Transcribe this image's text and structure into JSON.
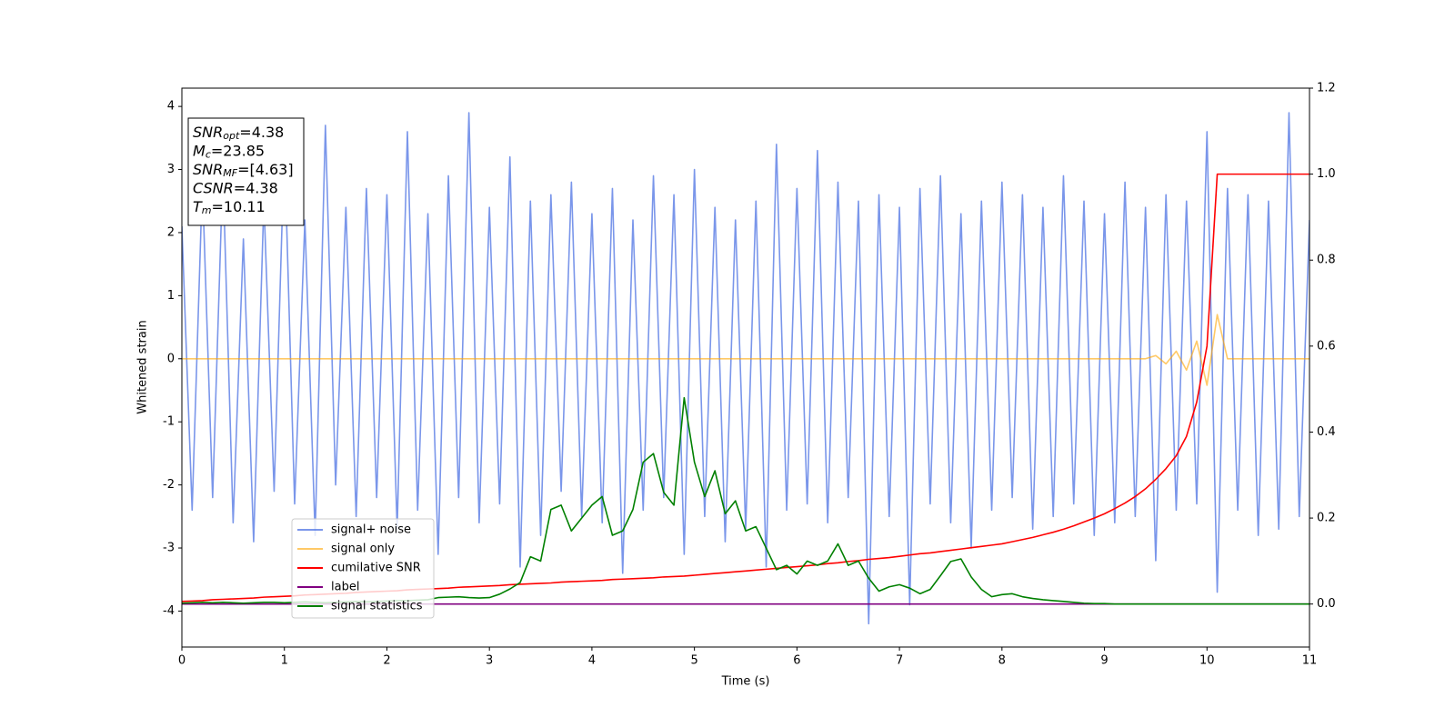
{
  "chart_data": {
    "type": "line",
    "xlabel": "Time (s)",
    "ylabel": "Whitened strain",
    "xlim": [
      0,
      11
    ],
    "xticks": [
      0,
      1,
      2,
      3,
      4,
      5,
      6,
      7,
      8,
      9,
      10,
      11
    ],
    "ylim": [
      -4.57,
      4.29
    ],
    "yticks": [
      -4,
      -3,
      -2,
      -1,
      0,
      1,
      2,
      3,
      4
    ],
    "y2lim": [
      -0.1,
      1.2
    ],
    "y2ticks": [
      {
        "value": 0,
        "label": "0.0"
      },
      0.2,
      0.4,
      0.6,
      0.8,
      {
        "value": 1,
        "label": "1.0"
      },
      1.2
    ],
    "legend": "lower left",
    "annotation": [
      {
        "base": "SNR",
        "sub": "opt",
        "text": "=4.38"
      },
      {
        "base": "M",
        "sub": "c",
        "text": "=23.85"
      },
      {
        "base": "SNR",
        "sub": "MF",
        "text": "=[4.63]"
      },
      {
        "base": "CSNR",
        "sub": "",
        "text": "=4.38"
      },
      {
        "base": "T",
        "sub": "m",
        "text": "=10.11"
      }
    ],
    "x": [
      0,
      0.1,
      0.2,
      0.3,
      0.4,
      0.5,
      0.6,
      0.7,
      0.8,
      0.9,
      1,
      1.1,
      1.2,
      1.3,
      1.4,
      1.5,
      1.6,
      1.7,
      1.8,
      1.9,
      2,
      2.1,
      2.2,
      2.3,
      2.4,
      2.5,
      2.6,
      2.7,
      2.8,
      2.9,
      3,
      3.1,
      3.2,
      3.3,
      3.4,
      3.5,
      3.6,
      3.7,
      3.8,
      3.9,
      4,
      4.1,
      4.2,
      4.3,
      4.4,
      4.5,
      4.6,
      4.7,
      4.8,
      4.9,
      5,
      5.1,
      5.2,
      5.3,
      5.4,
      5.5,
      5.6,
      5.7,
      5.8,
      5.9,
      6,
      6.1,
      6.2,
      6.3,
      6.4,
      6.5,
      6.6,
      6.7,
      6.8,
      6.9,
      7,
      7.1,
      7.2,
      7.3,
      7.4,
      7.5,
      7.6,
      7.7,
      7.8,
      7.9,
      8,
      8.1,
      8.2,
      8.3,
      8.4,
      8.5,
      8.6,
      8.7,
      8.8,
      8.9,
      9,
      9.1,
      9.2,
      9.3,
      9.4,
      9.5,
      9.6,
      9.7,
      9.8,
      9.9,
      10,
      10.1,
      10.2,
      10.3,
      10.4,
      10.5,
      10.6,
      10.7,
      10.8,
      10.9,
      11
    ],
    "series": [
      {
        "name": "signal+ noise",
        "color": "#4169e1",
        "opacity": 0.7,
        "axis": "y",
        "values": [
          2.1,
          -2.4,
          2.8,
          -2.2,
          3.0,
          -2.6,
          1.9,
          -2.9,
          2.5,
          -2.1,
          3.4,
          -2.3,
          2.2,
          -2.8,
          3.7,
          -2.0,
          2.4,
          -2.5,
          2.7,
          -2.2,
          2.6,
          -2.7,
          3.6,
          -2.4,
          2.3,
          -3.1,
          2.9,
          -2.2,
          3.9,
          -2.6,
          2.4,
          -2.3,
          3.2,
          -3.3,
          2.5,
          -2.8,
          2.6,
          -2.1,
          2.8,
          -2.5,
          2.3,
          -2.6,
          2.7,
          -3.4,
          2.2,
          -2.4,
          2.9,
          -2.2,
          2.6,
          -3.1,
          3.0,
          -2.5,
          2.4,
          -2.9,
          2.2,
          -2.7,
          2.5,
          -3.3,
          3.4,
          -2.4,
          2.7,
          -2.3,
          3.3,
          -2.6,
          2.8,
          -2.2,
          2.5,
          -4.2,
          2.6,
          -2.5,
          2.4,
          -3.9,
          2.7,
          -2.3,
          2.9,
          -2.6,
          2.3,
          -3.0,
          2.5,
          -2.4,
          2.8,
          -2.2,
          2.6,
          -2.7,
          2.4,
          -2.5,
          2.9,
          -2.3,
          2.5,
          -2.8,
          2.3,
          -2.6,
          2.8,
          -2.5,
          2.4,
          -3.2,
          2.6,
          -2.4,
          2.5,
          -2.3,
          3.6,
          -3.7,
          2.7,
          -2.4,
          2.6,
          -2.8,
          2.5,
          -2.7,
          3.9,
          -2.5,
          2.2
        ]
      },
      {
        "name": "signal only",
        "color": "#ffa500",
        "opacity": 0.6,
        "axis": "y",
        "values": [
          0,
          0,
          0,
          0,
          0,
          0,
          0,
          0,
          0,
          0,
          0,
          0,
          0,
          0,
          0,
          0,
          0,
          0,
          0,
          0,
          0,
          0,
          0,
          0,
          0,
          0,
          0,
          0,
          0,
          0,
          0,
          0,
          0,
          0,
          0,
          0,
          0,
          0,
          0,
          0,
          0,
          0,
          0,
          0,
          0,
          0,
          0,
          0,
          0,
          0,
          0,
          0,
          0,
          0,
          0,
          0,
          0,
          0,
          0,
          0,
          0,
          0,
          0,
          0,
          0,
          0,
          0,
          0,
          0,
          0,
          0,
          0,
          0,
          0,
          0,
          0,
          0,
          0,
          0,
          0,
          0,
          0,
          0,
          0,
          0,
          0,
          0,
          0,
          0,
          0,
          0,
          0,
          0,
          0,
          0,
          0.05,
          -0.08,
          0.12,
          -0.18,
          0.28,
          -0.42,
          0.7,
          0,
          0,
          0,
          0,
          0,
          0,
          0,
          0,
          0
        ]
      },
      {
        "name": "cumilative SNR",
        "color": "#ff0000",
        "opacity": 1,
        "axis": "y2",
        "values": [
          0.006,
          0.007,
          0.008,
          0.01,
          0.011,
          0.012,
          0.013,
          0.014,
          0.016,
          0.017,
          0.018,
          0.019,
          0.021,
          0.022,
          0.023,
          0.024,
          0.025,
          0.027,
          0.028,
          0.029,
          0.03,
          0.031,
          0.033,
          0.034,
          0.035,
          0.036,
          0.037,
          0.039,
          0.04,
          0.041,
          0.042,
          0.043,
          0.045,
          0.046,
          0.047,
          0.048,
          0.049,
          0.051,
          0.052,
          0.053,
          0.054,
          0.055,
          0.057,
          0.058,
          0.059,
          0.06,
          0.061,
          0.063,
          0.064,
          0.065,
          0.067,
          0.069,
          0.071,
          0.073,
          0.075,
          0.077,
          0.079,
          0.081,
          0.083,
          0.085,
          0.087,
          0.089,
          0.091,
          0.094,
          0.096,
          0.099,
          0.101,
          0.104,
          0.106,
          0.108,
          0.111,
          0.114,
          0.117,
          0.119,
          0.122,
          0.125,
          0.128,
          0.131,
          0.134,
          0.137,
          0.14,
          0.145,
          0.15,
          0.155,
          0.161,
          0.167,
          0.174,
          0.182,
          0.191,
          0.2,
          0.21,
          0.222,
          0.235,
          0.25,
          0.268,
          0.29,
          0.315,
          0.345,
          0.39,
          0.47,
          0.6,
          1,
          1,
          1,
          1,
          1,
          1,
          1,
          1,
          1,
          1
        ]
      },
      {
        "name": "label",
        "color": "#800080",
        "opacity": 1,
        "axis": "y2",
        "values": [
          0,
          0,
          0,
          0,
          0,
          0,
          0,
          0,
          0,
          0,
          0,
          0,
          0,
          0,
          0,
          0,
          0,
          0,
          0,
          0,
          0,
          0,
          0,
          0,
          0,
          0,
          0,
          0,
          0,
          0,
          0,
          0,
          0,
          0,
          0,
          0,
          0,
          0,
          0,
          0,
          0,
          0,
          0,
          0,
          0,
          0,
          0,
          0,
          0,
          0,
          0,
          0,
          0,
          0,
          0,
          0,
          0,
          0,
          0,
          0,
          0,
          0,
          0,
          0,
          0,
          0,
          0,
          0,
          0,
          0,
          0,
          0,
          0,
          0,
          0,
          0,
          0,
          0,
          0,
          0,
          0,
          0,
          0,
          0,
          0,
          0,
          0,
          0,
          0,
          0,
          0,
          0,
          0,
          0,
          0,
          0,
          0,
          0,
          0,
          0,
          0,
          0,
          0,
          0,
          0,
          0,
          0,
          0,
          0,
          0,
          0
        ]
      },
      {
        "name": "signal statistics",
        "color": "#008000",
        "opacity": 1,
        "axis": "y2",
        "values": [
          0.002,
          0.003,
          0.004,
          0.003,
          0.004,
          0.003,
          0.002,
          0.003,
          0.004,
          0.004,
          0.003,
          0.004,
          0.005,
          0.004,
          0.003,
          0.004,
          0.005,
          0.006,
          0.005,
          0.006,
          0.007,
          0.008,
          0.008,
          0.009,
          0.01,
          0.015,
          0.016,
          0.017,
          0.015,
          0.014,
          0.015,
          0.023,
          0.035,
          0.05,
          0.11,
          0.1,
          0.22,
          0.23,
          0.17,
          0.2,
          0.23,
          0.25,
          0.16,
          0.17,
          0.22,
          0.33,
          0.35,
          0.26,
          0.23,
          0.48,
          0.33,
          0.25,
          0.31,
          0.21,
          0.24,
          0.17,
          0.18,
          0.13,
          0.08,
          0.09,
          0.07,
          0.1,
          0.09,
          0.1,
          0.14,
          0.09,
          0.1,
          0.06,
          0.03,
          0.04,
          0.045,
          0.037,
          0.024,
          0.034,
          0.066,
          0.099,
          0.105,
          0.063,
          0.034,
          0.017,
          0.022,
          0.024,
          0.017,
          0.013,
          0.01,
          0.008,
          0.006,
          0.004,
          0.002,
          0.001,
          0.001,
          0,
          0,
          0,
          0,
          0,
          0,
          0,
          0,
          0,
          0,
          0,
          0,
          0,
          0,
          0,
          0,
          0,
          0,
          0,
          0
        ]
      }
    ]
  }
}
